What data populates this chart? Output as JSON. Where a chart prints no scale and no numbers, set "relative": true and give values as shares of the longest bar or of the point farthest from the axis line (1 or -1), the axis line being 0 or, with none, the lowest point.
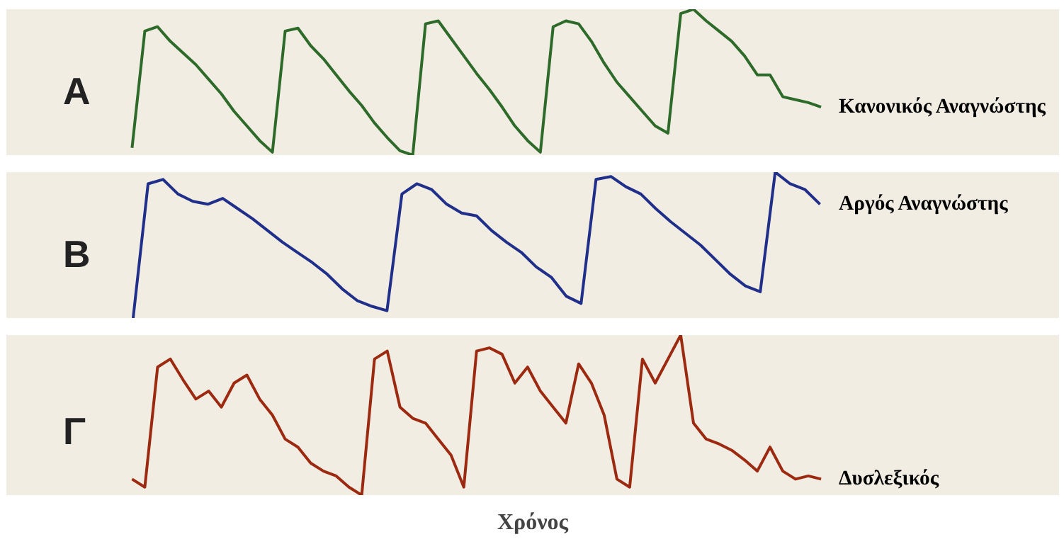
{
  "chart_data": [
    {
      "type": "line",
      "title": "Α",
      "relative": true,
      "tick_labels": false,
      "categories": [
        null,
        null,
        null,
        null,
        null,
        null,
        null,
        null,
        null,
        null,
        null,
        null,
        null,
        null,
        null,
        null,
        null,
        null,
        null,
        null,
        null,
        null,
        null,
        null,
        null,
        null,
        null,
        null,
        null,
        null,
        null,
        null,
        null,
        null,
        null,
        null,
        null,
        null,
        null,
        null,
        null,
        null,
        null,
        null,
        null,
        null,
        null,
        null,
        null,
        null,
        null,
        null,
        null,
        null,
        null
      ],
      "series": [
        {
          "name": "Κανονικός Αναγνώστης",
          "color": "#2e6b2a",
          "values": [
            0.05,
            0.85,
            0.88,
            0.78,
            0.7,
            0.62,
            0.52,
            0.42,
            0.3,
            0.2,
            0.1,
            0.02,
            0.85,
            0.87,
            0.75,
            0.66,
            0.55,
            0.44,
            0.34,
            0.22,
            0.12,
            0.03,
            0.0,
            0.9,
            0.92,
            0.8,
            0.68,
            0.56,
            0.45,
            0.33,
            0.2,
            0.1,
            0.02,
            0.88,
            0.92,
            0.9,
            0.78,
            0.63,
            0.5,
            0.4,
            0.3,
            0.2,
            0.15,
            0.97,
            1.0,
            0.92,
            0.85,
            0.78,
            0.68,
            0.55,
            0.55,
            0.4,
            0.38,
            0.36,
            0.33
          ]
        }
      ]
    },
    {
      "type": "line",
      "title": "Β",
      "relative": true,
      "tick_labels": false,
      "categories": [
        null,
        null,
        null,
        null,
        null,
        null,
        null,
        null,
        null,
        null,
        null,
        null,
        null,
        null,
        null,
        null,
        null,
        null,
        null,
        null,
        null,
        null,
        null,
        null,
        null,
        null,
        null,
        null,
        null,
        null,
        null,
        null,
        null,
        null,
        null,
        null,
        null,
        null,
        null,
        null,
        null,
        null,
        null,
        null,
        null,
        null,
        null
      ],
      "series": [
        {
          "name": "Αργός Αναγνώστης",
          "color": "#1f2f8a",
          "values": [
            0.0,
            0.92,
            0.95,
            0.85,
            0.8,
            0.78,
            0.82,
            0.75,
            0.68,
            0.6,
            0.52,
            0.45,
            0.38,
            0.3,
            0.2,
            0.12,
            0.08,
            0.05,
            0.85,
            0.92,
            0.88,
            0.78,
            0.72,
            0.7,
            0.6,
            0.52,
            0.45,
            0.35,
            0.28,
            0.15,
            0.1,
            0.95,
            0.97,
            0.9,
            0.85,
            0.75,
            0.66,
            0.58,
            0.5,
            0.4,
            0.3,
            0.22,
            0.18,
            1.0,
            0.92,
            0.88,
            0.78
          ]
        }
      ]
    },
    {
      "type": "line",
      "title": "Γ",
      "xlabel": "Χρόνος",
      "relative": true,
      "tick_labels": false,
      "categories": [
        null,
        null,
        null,
        null,
        null,
        null,
        null,
        null,
        null,
        null,
        null,
        null,
        null,
        null,
        null,
        null,
        null,
        null,
        null,
        null,
        null,
        null,
        null,
        null,
        null,
        null,
        null,
        null,
        null,
        null,
        null,
        null,
        null,
        null,
        null,
        null,
        null,
        null,
        null,
        null,
        null,
        null,
        null,
        null,
        null,
        null,
        null,
        null,
        null,
        null,
        null,
        null,
        null,
        null,
        null
      ],
      "series": [
        {
          "name": "Δυσλεξικός",
          "color": "#9c2a10",
          "values": [
            0.1,
            0.05,
            0.8,
            0.85,
            0.72,
            0.6,
            0.65,
            0.55,
            0.7,
            0.75,
            0.6,
            0.5,
            0.35,
            0.3,
            0.2,
            0.15,
            0.12,
            0.05,
            0.0,
            0.85,
            0.9,
            0.55,
            0.48,
            0.45,
            0.35,
            0.25,
            0.05,
            0.9,
            0.92,
            0.88,
            0.7,
            0.8,
            0.65,
            0.55,
            0.45,
            0.82,
            0.7,
            0.5,
            0.1,
            0.05,
            0.85,
            0.7,
            0.85,
            1.0,
            0.45,
            0.35,
            0.32,
            0.28,
            0.22,
            0.15,
            0.3,
            0.15,
            0.1,
            0.12,
            0.1
          ]
        }
      ]
    }
  ]
}
